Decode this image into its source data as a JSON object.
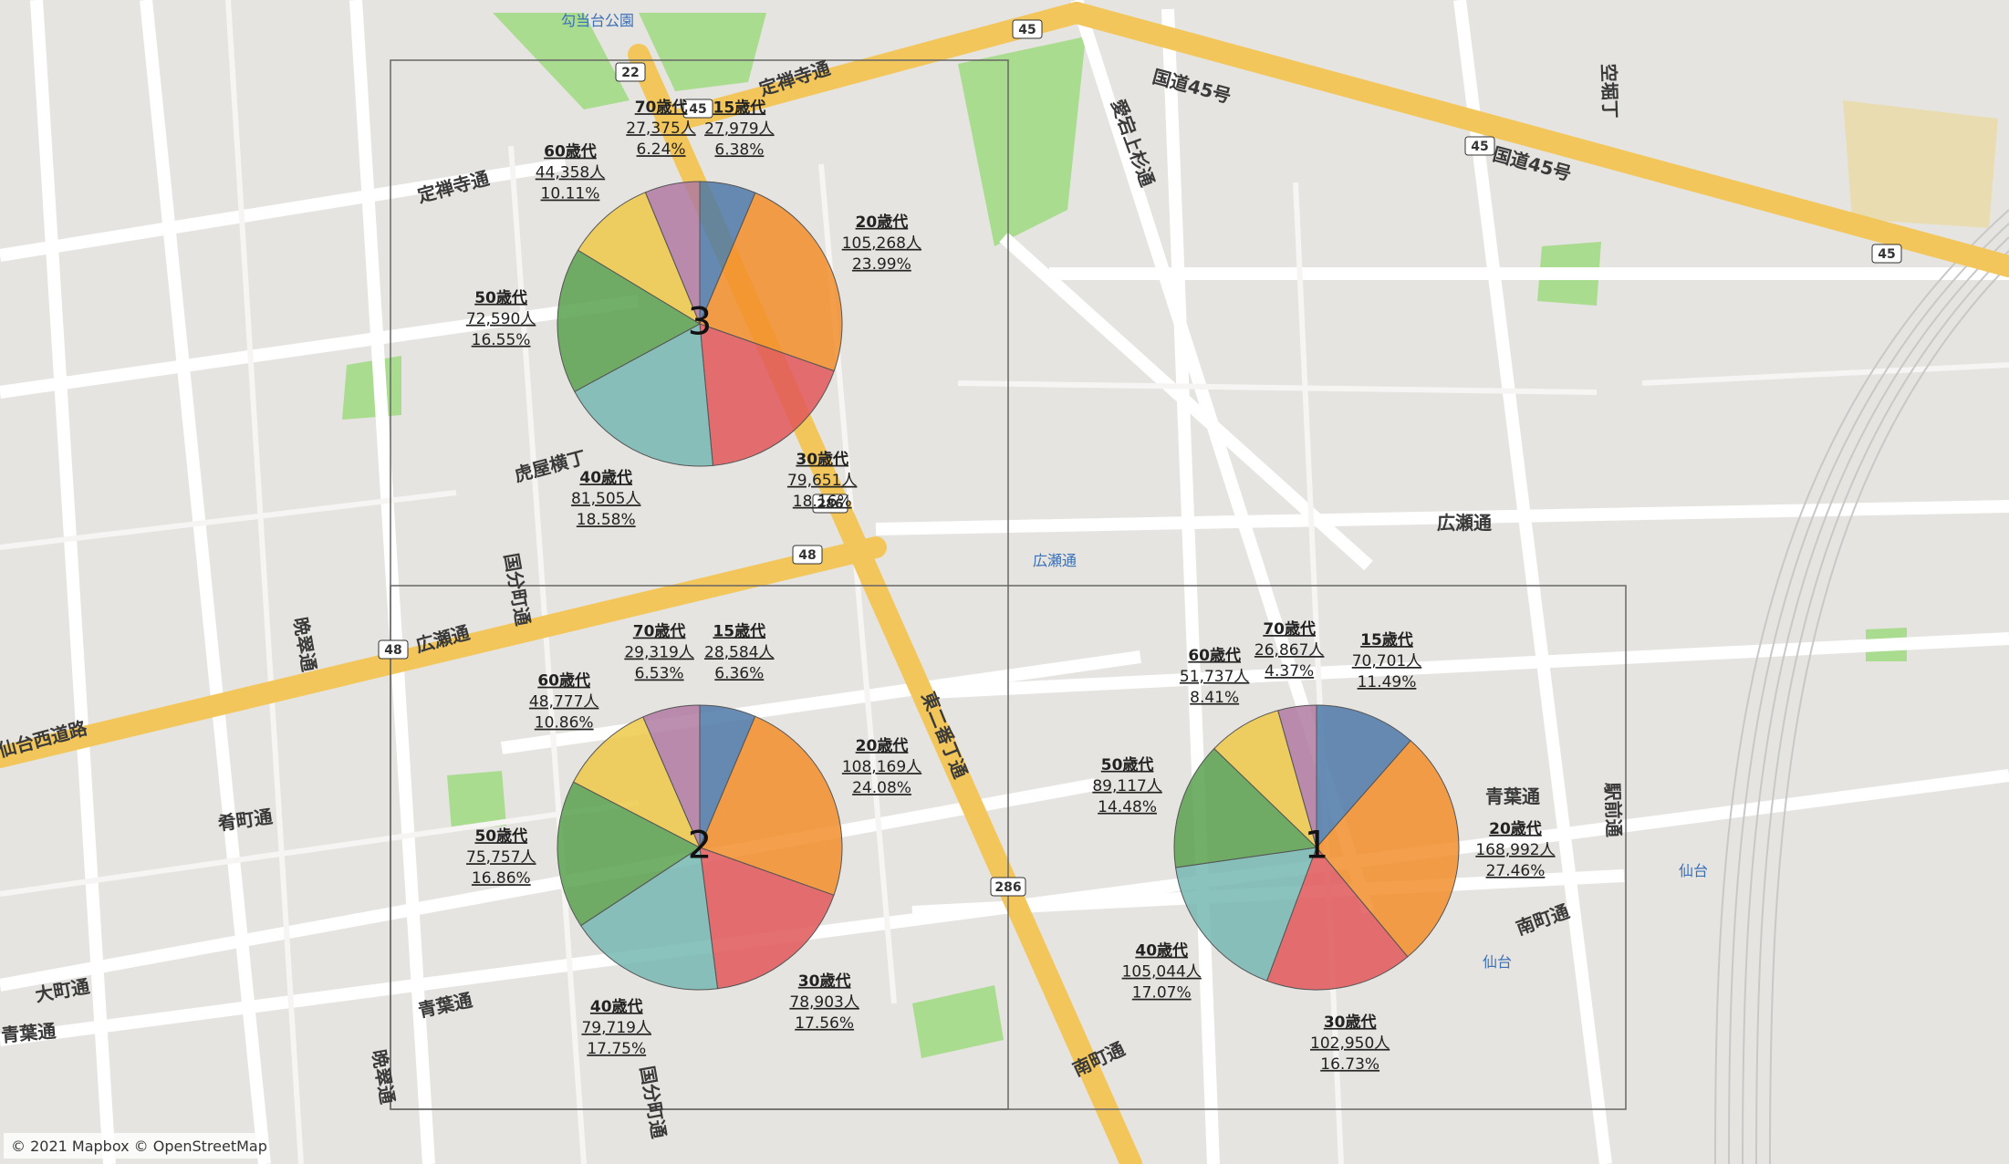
{
  "pies": [
    {
      "label": "3",
      "slices": [
        {
          "age": "15歳代",
          "count": 27979,
          "count_label": "27,979人",
          "percent": 6.38,
          "percent_label": "6.38%",
          "color": "#4e79a7"
        },
        {
          "age": "20歳代",
          "count": 105268,
          "count_label": "105,268人",
          "percent": 23.99,
          "percent_label": "23.99%",
          "color": "#f28e2b"
        },
        {
          "age": "30歳代",
          "count": 79651,
          "count_label": "79,651人",
          "percent": 18.16,
          "percent_label": "18.16%",
          "color": "#e15759"
        },
        {
          "age": "40歳代",
          "count": 81505,
          "count_label": "81,505人",
          "percent": 18.58,
          "percent_label": "18.58%",
          "color": "#76b7b2"
        },
        {
          "age": "50歳代",
          "count": 72590,
          "count_label": "72,590人",
          "percent": 16.55,
          "percent_label": "16.55%",
          "color": "#59a14f"
        },
        {
          "age": "60歳代",
          "count": 44358,
          "count_label": "44,358人",
          "percent": 10.11,
          "percent_label": "10.11%",
          "color": "#edc948"
        },
        {
          "age": "70歳代",
          "count": 27375,
          "count_label": "27,375人",
          "percent": 6.24,
          "percent_label": "6.24%",
          "color": "#b07aa1"
        }
      ]
    },
    {
      "label": "2",
      "slices": [
        {
          "age": "15歳代",
          "count": 28584,
          "count_label": "28,584人",
          "percent": 6.36,
          "percent_label": "6.36%",
          "color": "#4e79a7"
        },
        {
          "age": "20歳代",
          "count": 108169,
          "count_label": "108,169人",
          "percent": 24.08,
          "percent_label": "24.08%",
          "color": "#f28e2b"
        },
        {
          "age": "30歳代",
          "count": 78903,
          "count_label": "78,903人",
          "percent": 17.56,
          "percent_label": "17.56%",
          "color": "#e15759"
        },
        {
          "age": "40歳代",
          "count": 79719,
          "count_label": "79,719人",
          "percent": 17.75,
          "percent_label": "17.75%",
          "color": "#76b7b2"
        },
        {
          "age": "50歳代",
          "count": 75757,
          "count_label": "75,757人",
          "percent": 16.86,
          "percent_label": "16.86%",
          "color": "#59a14f"
        },
        {
          "age": "60歳代",
          "count": 48777,
          "count_label": "48,777人",
          "percent": 10.86,
          "percent_label": "10.86%",
          "color": "#edc948"
        },
        {
          "age": "70歳代",
          "count": 29319,
          "count_label": "29,319人",
          "percent": 6.53,
          "percent_label": "6.53%",
          "color": "#b07aa1"
        }
      ]
    },
    {
      "label": "1",
      "slices": [
        {
          "age": "15歳代",
          "count": 70701,
          "count_label": "70,701人",
          "percent": 11.49,
          "percent_label": "11.49%",
          "color": "#4e79a7"
        },
        {
          "age": "20歳代",
          "count": 168992,
          "count_label": "168,992人",
          "percent": 27.46,
          "percent_label": "27.46%",
          "color": "#f28e2b"
        },
        {
          "age": "30歳代",
          "count": 102950,
          "count_label": "102,950人",
          "percent": 16.73,
          "percent_label": "16.73%",
          "color": "#e15759"
        },
        {
          "age": "40歳代",
          "count": 105044,
          "count_label": "105,044人",
          "percent": 17.07,
          "percent_label": "17.07%",
          "color": "#76b7b2"
        },
        {
          "age": "50歳代",
          "count": 89117,
          "count_label": "89,117人",
          "percent": 14.48,
          "percent_label": "14.48%",
          "color": "#59a14f"
        },
        {
          "age": "60歳代",
          "count": 51737,
          "count_label": "51,737人",
          "percent": 8.41,
          "percent_label": "8.41%",
          "color": "#edc948"
        },
        {
          "age": "70歳代",
          "count": 26867,
          "count_label": "26,867人",
          "percent": 4.37,
          "percent_label": "4.37%",
          "color": "#b07aa1"
        }
      ]
    }
  ],
  "map_labels": [
    "勾当台公園",
    "定禅寺通",
    "定禅寺通",
    "国道45号",
    "国道45号",
    "愛宕上杉通",
    "広瀬通",
    "広瀬通",
    "広瀬通",
    "晩翠通",
    "東二番丁通",
    "青葉通",
    "南町通",
    "南町通",
    "青葉通",
    "肴町通",
    "大町通",
    "青葉通",
    "仙台西道路",
    "仙台",
    "仙台",
    "駅前通",
    "虎屋横丁",
    "国分町通",
    "晩翠通",
    "国分町通",
    "空堀丁"
  ],
  "route_shields": [
    "45",
    "45",
    "45",
    "45",
    "22",
    "48",
    "48",
    "286",
    "286"
  ],
  "attribution": "© 2021 Mapbox © OpenStreetMap"
}
